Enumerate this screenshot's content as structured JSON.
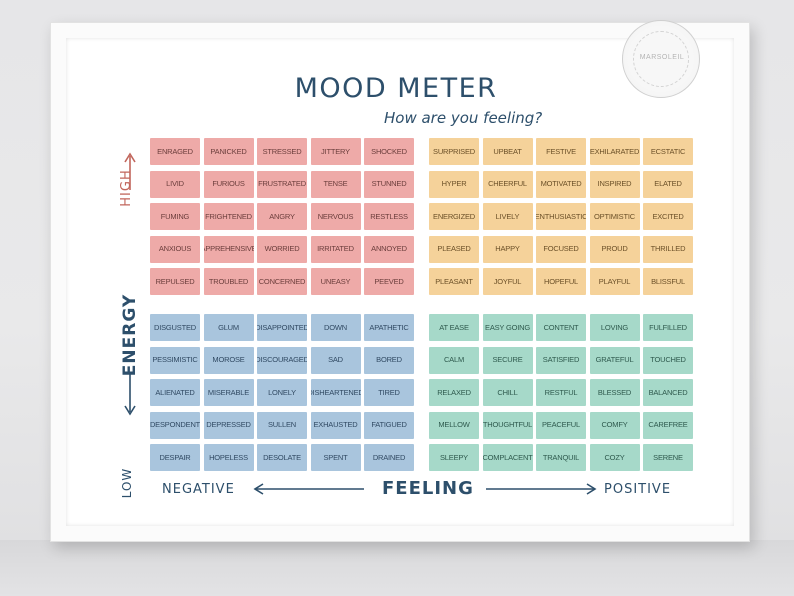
{
  "title": "MOOD METER",
  "subtitle": "How are you feeling?",
  "stamp_text": "MARSOLEIL",
  "axes": {
    "high": "HIGH",
    "energy": "ENERGY",
    "low": "LOW",
    "negative": "NEGATIVE",
    "feeling": "FEELING",
    "positive": "POSITIVE"
  },
  "colors": {
    "red": "#eeaaa8",
    "yellow": "#f5d29a",
    "blue": "#a9c5dd",
    "green": "#a6d9c9",
    "axis_high": "#c1665c",
    "text": "#2d4f6b"
  },
  "quadrants": {
    "red": [
      [
        "ENRAGED",
        "PANICKED",
        "STRESSED",
        "JITTERY",
        "SHOCKED"
      ],
      [
        "LIVID",
        "FURIOUS",
        "FRUSTRATED",
        "TENSE",
        "STUNNED"
      ],
      [
        "FUMING",
        "FRIGHTENED",
        "ANGRY",
        "NERVOUS",
        "RESTLESS"
      ],
      [
        "ANXIOUS",
        "APPREHENSIVE",
        "WORRIED",
        "IRRITATED",
        "ANNOYED"
      ],
      [
        "REPULSED",
        "TROUBLED",
        "CONCERNED",
        "UNEASY",
        "PEEVED"
      ]
    ],
    "yellow": [
      [
        "SURPRISED",
        "UPBEAT",
        "FESTIVE",
        "EXHILARATED",
        "ECSTATIC"
      ],
      [
        "HYPER",
        "CHEERFUL",
        "MOTIVATED",
        "INSPIRED",
        "ELATED"
      ],
      [
        "ENERGIZED",
        "LIVELY",
        "ENTHUSIASTIC",
        "OPTIMISTIC",
        "EXCITED"
      ],
      [
        "PLEASED",
        "HAPPY",
        "FOCUSED",
        "PROUD",
        "THRILLED"
      ],
      [
        "PLEASANT",
        "JOYFUL",
        "HOPEFUL",
        "PLAYFUL",
        "BLISSFUL"
      ]
    ],
    "blue": [
      [
        "DISGUSTED",
        "GLUM",
        "DISAPPOINTED",
        "DOWN",
        "APATHETIC"
      ],
      [
        "PESSIMISTIC",
        "MOROSE",
        "DISCOURAGED",
        "SAD",
        "BORED"
      ],
      [
        "ALIENATED",
        "MISERABLE",
        "LONELY",
        "DISHEARTENED",
        "TIRED"
      ],
      [
        "DESPONDENT",
        "DEPRESSED",
        "SULLEN",
        "EXHAUSTED",
        "FATIGUED"
      ],
      [
        "DESPAIR",
        "HOPELESS",
        "DESOLATE",
        "SPENT",
        "DRAINED"
      ]
    ],
    "green": [
      [
        "AT EASE",
        "EASY GOING",
        "CONTENT",
        "LOVING",
        "FULFILLED"
      ],
      [
        "CALM",
        "SECURE",
        "SATISFIED",
        "GRATEFUL",
        "TOUCHED"
      ],
      [
        "RELAXED",
        "CHILL",
        "RESTFUL",
        "BLESSED",
        "BALANCED"
      ],
      [
        "MELLOW",
        "THOUGHTFUL",
        "PEACEFUL",
        "COMFY",
        "CAREFREE"
      ],
      [
        "SLEEPY",
        "COMPLACENT",
        "TRANQUIL",
        "COZY",
        "SERENE"
      ]
    ]
  }
}
